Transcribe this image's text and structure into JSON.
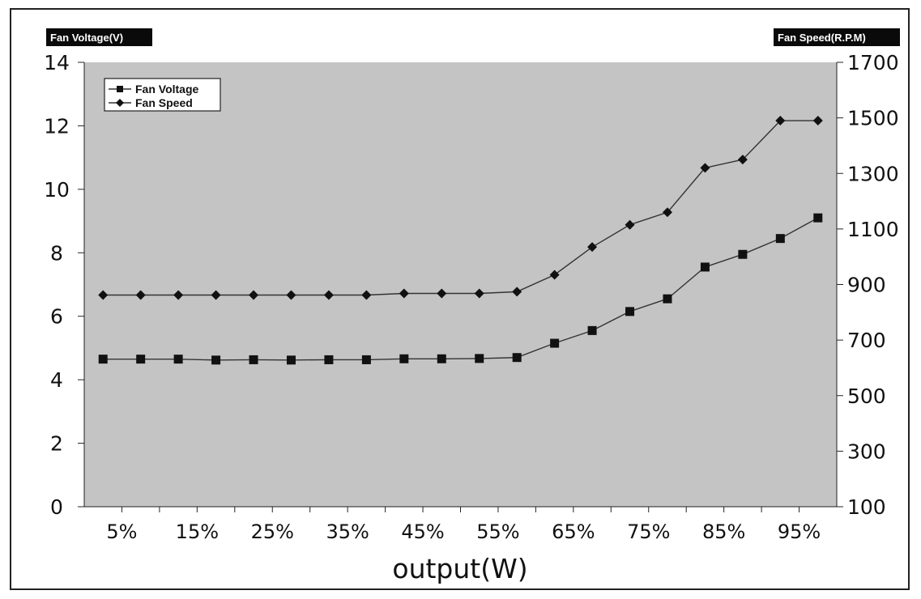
{
  "chart_data": {
    "type": "line",
    "ylabel_left": "Fan Voltage(V)",
    "ylabel_right": "Fan Speed(R.P.M)",
    "xlabel": "output(W)",
    "x_tick_labels": [
      "5%",
      "15%",
      "25%",
      "35%",
      "45%",
      "55%",
      "65%",
      "75%",
      "85%",
      "95%"
    ],
    "x_positions": [
      "2.5%",
      "7.5%",
      "12.5%",
      "17.5%",
      "22.5%",
      "27.5%",
      "32.5%",
      "37.5%",
      "42.5%",
      "47.5%",
      "52.5%",
      "57.5%",
      "62.5%",
      "67.5%",
      "72.5%",
      "77.5%",
      "82.5%",
      "87.5%",
      "92.5%",
      "97.5%"
    ],
    "ylim_left": [
      0,
      14
    ],
    "yticks_left": [
      0,
      2,
      4,
      6,
      8,
      10,
      12,
      14
    ],
    "ylim_right": [
      100,
      1700
    ],
    "yticks_right": [
      100,
      300,
      500,
      700,
      900,
      1100,
      1300,
      1500,
      1700
    ],
    "grid": false,
    "legend_position": "top-left",
    "background_color": "#c4c4c4",
    "line_color": "#333333",
    "series": [
      {
        "name": "Fan Voltage",
        "axis": "left",
        "marker": "square",
        "values": [
          4.65,
          4.65,
          4.65,
          4.62,
          4.63,
          4.62,
          4.63,
          4.63,
          4.66,
          4.66,
          4.67,
          4.7,
          5.15,
          5.55,
          6.15,
          6.55,
          7.55,
          7.95,
          8.45,
          9.1
        ]
      },
      {
        "name": "Fan Speed",
        "axis": "right",
        "marker": "diamond",
        "values": [
          862,
          862,
          862,
          862,
          862,
          862,
          862,
          862,
          868,
          868,
          868,
          874,
          935,
          1035,
          1115,
          1160,
          1320,
          1350,
          1490,
          1490
        ]
      }
    ]
  }
}
